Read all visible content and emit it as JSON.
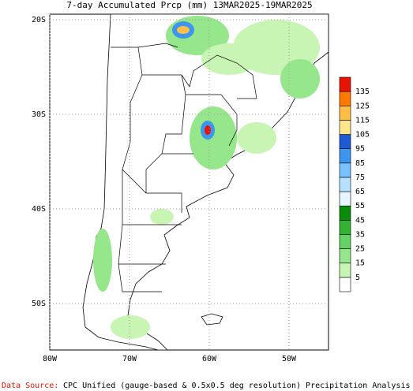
{
  "title": "7-day Accumulated Prcp (mm) 13MAR2025-19MAR2025",
  "map": {
    "lat_labels": [
      "20S",
      "30S",
      "40S",
      "50S"
    ],
    "lon_labels": [
      "80W",
      "70W",
      "60W",
      "50W"
    ]
  },
  "colorbar": {
    "levels": [
      5,
      15,
      25,
      35,
      45,
      55,
      65,
      75,
      85,
      95,
      105,
      115,
      125,
      135
    ],
    "colors": [
      "#ffffff",
      "#c8f5b4",
      "#96e68c",
      "#64d264",
      "#32b432",
      "#0a8c0a",
      "#e6f5ff",
      "#b4e1ff",
      "#78c3ff",
      "#3c96f0",
      "#1e5ad2",
      "#ffe68c",
      "#ffbe46",
      "#ff7800",
      "#e61400"
    ]
  },
  "footer": {
    "source_label": "Data Source:",
    "source_text": "CPC Unified (gauge-based & 0.5x0.5 deg resolution) Precipitation Analysis"
  }
}
